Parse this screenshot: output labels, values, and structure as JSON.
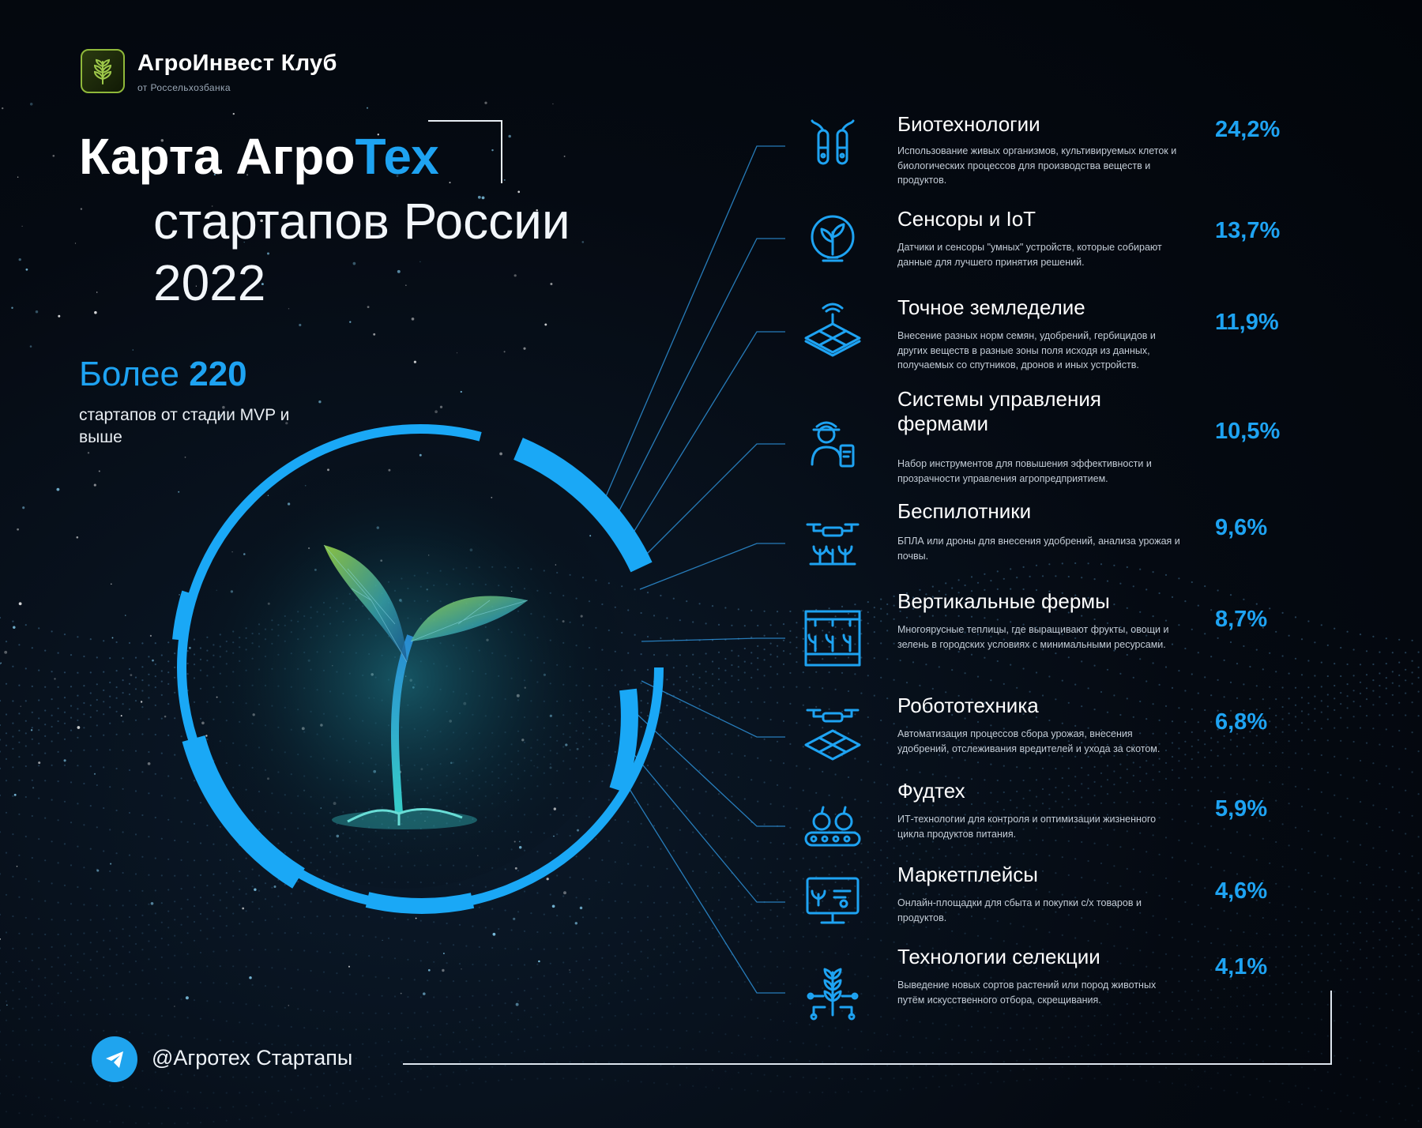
{
  "brand": {
    "name": "АгроИнвест Клуб",
    "subtitle": "от Россельхозбанка",
    "logo_icon": "wheat-logo-icon"
  },
  "title": {
    "line1_part1": "Карта Агро",
    "line1_accent": "Тех",
    "line2": "стартапов России",
    "line3": "2022"
  },
  "stat": {
    "prefix": "Более ",
    "number": "220",
    "caption": "стартапов от стадии MVP и выше"
  },
  "colors": {
    "accent": "#1ea3f2",
    "background": "#050a12",
    "text": "#ffffff",
    "ring": "#1aa8f6"
  },
  "chart_data": {
    "type": "table",
    "unit": "%",
    "categories": [
      {
        "name": "Биотехнологии",
        "value": 24.2,
        "label": "24,2%",
        "description": "Использование живых организмов, культивируемых клеток и биологических процессов для производства веществ и продуктов.",
        "icon": "test-tubes-icon"
      },
      {
        "name": "Сенсоры и IoT",
        "value": 13.7,
        "label": "13,7%",
        "description": "Датчики и сенсоры \"умных\" устройств, которые собирают данные для лучшего принятия решений.",
        "icon": "sensor-plant-icon"
      },
      {
        "name": "Точное земледелие",
        "value": 11.9,
        "label": "11,9%",
        "description": "Внесение разных норм семян, удобрений, гербицидов и других веществ в разные зоны поля исходя из данных, получаемых со спутников, дронов и иных устройств.",
        "icon": "precision-field-icon"
      },
      {
        "name": "Системы управления фермами",
        "value": 10.5,
        "label": "10,5%",
        "description": "Набор инструментов для повышения эффективности и прозрачности управления агропредприятием.",
        "icon": "farmer-tablet-icon"
      },
      {
        "name": "Беспилотники",
        "value": 9.6,
        "label": "9,6%",
        "description": "БПЛА или дроны для внесения удобрений, анализа урожая и почвы.",
        "icon": "drone-icon"
      },
      {
        "name": "Вертикальные фермы",
        "value": 8.7,
        "label": "8,7%",
        "description": "Многоярусные теплицы, где выращивают фрукты, овощи и зелень в городских условиях с минимальными ресурсами.",
        "icon": "vertical-farm-icon"
      },
      {
        "name": "Робототехника",
        "value": 6.8,
        "label": "6,8%",
        "description": "Автоматизация процессов сбора урожая, внесения удобрений, отслеживания вредителей и ухода за скотом.",
        "icon": "robot-drone-field-icon"
      },
      {
        "name": "Фудтех",
        "value": 5.9,
        "label": "5,9%",
        "description": "ИТ-технологии для контроля и оптимизации жизненного цикла продуктов питания.",
        "icon": "food-conveyor-icon"
      },
      {
        "name": "Маркетплейсы",
        "value": 4.6,
        "label": "4,6%",
        "description": "Онлайн-площадки для сбыта и покупки с/х товаров и продуктов.",
        "icon": "marketplace-monitor-icon"
      },
      {
        "name": "Технологии селекции",
        "value": 4.1,
        "label": "4,1%",
        "description": "Выведение новых сортов растений или пород животных путём искусственного отбора, скрещивания.",
        "icon": "wheat-circuit-icon"
      }
    ]
  },
  "footer": {
    "handle": "@Агротех Стартапы",
    "icon": "telegram-icon"
  }
}
